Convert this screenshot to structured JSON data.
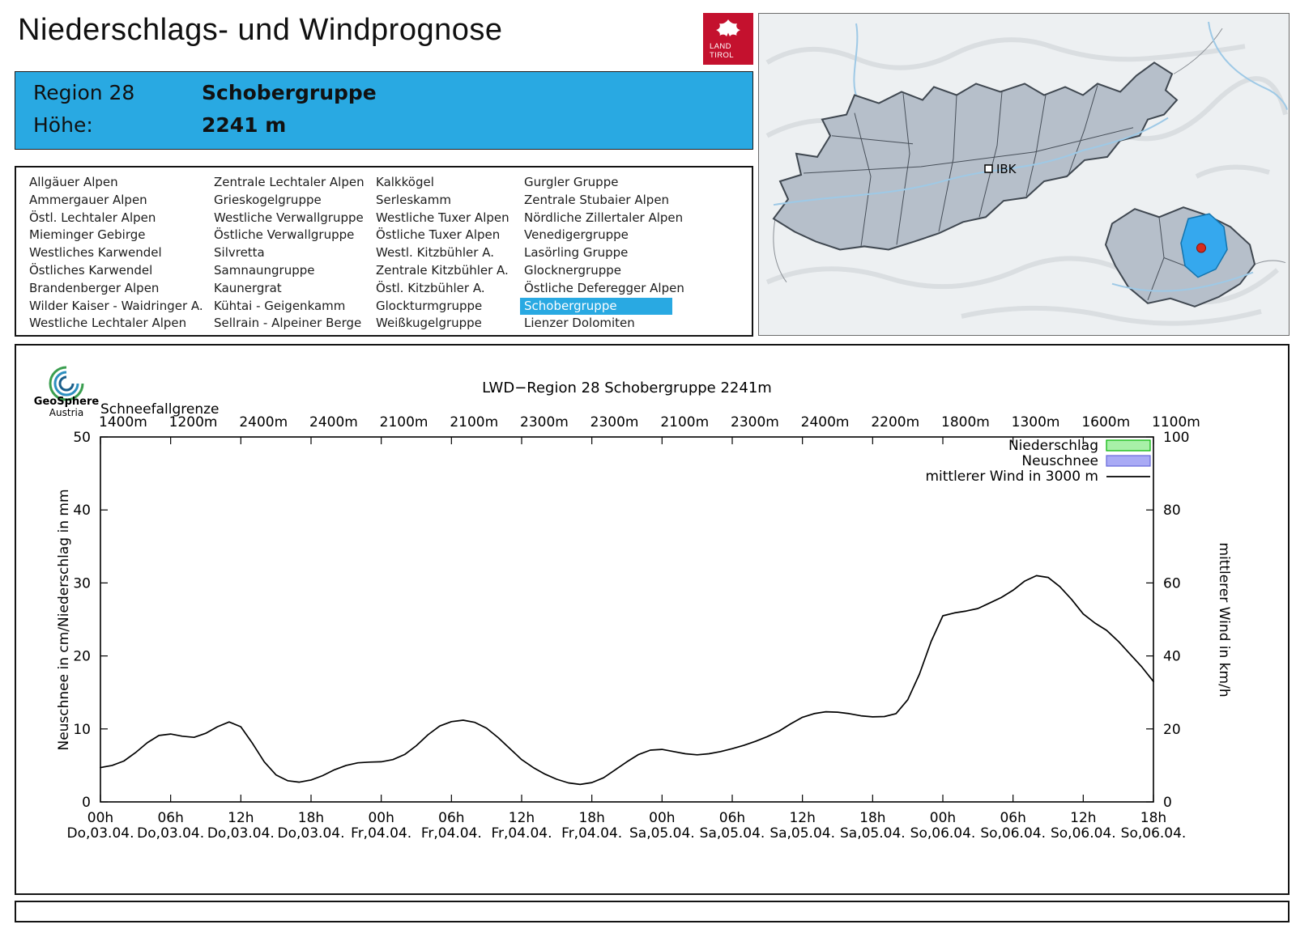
{
  "header": {
    "title": "Niederschlags- und Windprognose",
    "logo": {
      "line1": "LAND",
      "line2": "TIROL"
    }
  },
  "region_info": {
    "region_label": "Region 28",
    "region_name": "Schobergruppe",
    "altitude_label": "Höhe:",
    "altitude_value": "2241 m",
    "accent_color": "#29a9e2"
  },
  "region_list": {
    "selected": "Schobergruppe",
    "columns": [
      [
        "Allgäuer Alpen",
        "Ammergauer Alpen",
        "Östl. Lechtaler Alpen",
        "Mieminger Gebirge",
        "Westliches Karwendel",
        "Östliches Karwendel",
        "Brandenberger Alpen",
        "Wilder Kaiser - Waidringer A.",
        "Westliche Lechtaler Alpen"
      ],
      [
        "Zentrale Lechtaler Alpen",
        "Grieskogelgruppe",
        "Westliche Verwallgruppe",
        "Östliche Verwallgruppe",
        "Silvretta",
        "Samnaungruppe",
        "Kaunergrat",
        "Kühtai - Geigenkamm",
        "Sellrain - Alpeiner Berge"
      ],
      [
        "Kalkkögel",
        "Serleskamm",
        "Westliche Tuxer Alpen",
        "Östliche Tuxer Alpen",
        "Westl. Kitzbühler A.",
        "Zentrale Kitzbühler A.",
        "Östl. Kitzbühler A.",
        "Glockturmgruppe",
        "Weißkugelgruppe"
      ],
      [
        "Gurgler Gruppe",
        "Zentrale Stubaier Alpen",
        "Nördliche Zillertaler Alpen",
        "Venedigergruppe",
        "Lasörling Gruppe",
        "Glocknergruppe",
        "Östliche Deferegger Alpen",
        "Schobergruppe",
        "Lienzer Dolomiten"
      ]
    ]
  },
  "map": {
    "marker_label": "IBK",
    "selected_region_color": "#35a8ee",
    "marker_dot_color": "#d62b1e"
  },
  "chart_logo": {
    "line1": "GeoSphere",
    "line2": "Austria"
  },
  "chart_data": {
    "type": "line",
    "title": "LWD−Region 28 Schobergruppe 2241m",
    "grid": false,
    "legend_position": "top-right",
    "x_axis": {
      "range_hours": [
        0,
        90
      ],
      "tick_every_hours": 6,
      "ticks": [
        {
          "hour": "00h",
          "date": "Do,03.04."
        },
        {
          "hour": "06h",
          "date": "Do,03.04."
        },
        {
          "hour": "12h",
          "date": "Do,03.04."
        },
        {
          "hour": "18h",
          "date": "Do,03.04."
        },
        {
          "hour": "00h",
          "date": "Fr,04.04."
        },
        {
          "hour": "06h",
          "date": "Fr,04.04."
        },
        {
          "hour": "12h",
          "date": "Fr,04.04."
        },
        {
          "hour": "18h",
          "date": "Fr,04.04."
        },
        {
          "hour": "00h",
          "date": "Sa,05.04."
        },
        {
          "hour": "06h",
          "date": "Sa,05.04."
        },
        {
          "hour": "12h",
          "date": "Sa,05.04."
        },
        {
          "hour": "18h",
          "date": "Sa,05.04."
        },
        {
          "hour": "00h",
          "date": "So,06.04."
        },
        {
          "hour": "06h",
          "date": "So,06.04."
        },
        {
          "hour": "12h",
          "date": "So,06.04."
        },
        {
          "hour": "18h",
          "date": "So,06.04."
        }
      ]
    },
    "y_axis_left": {
      "label": "Neuschnee in cm/Niederschlag in mm",
      "lim": [
        0,
        50
      ],
      "ticks": [
        0,
        10,
        20,
        30,
        40,
        50
      ]
    },
    "y_axis_right": {
      "label": "mittlerer Wind in km/h",
      "lim": [
        0,
        100
      ],
      "ticks": [
        0,
        20,
        40,
        60,
        80,
        100
      ]
    },
    "snowline": {
      "label": "Schneefallgrenze",
      "values": [
        "1400m",
        "1200m",
        "2400m",
        "2400m",
        "2100m",
        "2100m",
        "2300m",
        "2300m",
        "2100m",
        "2300m",
        "2400m",
        "2200m",
        "1800m",
        "1300m",
        "1600m",
        "1100m"
      ]
    },
    "series": [
      {
        "name": "Niederschlag",
        "type": "bars",
        "unit": "mm",
        "fill": "#a8f0a8",
        "border": "#00b400",
        "values": []
      },
      {
        "name": "Neuschnee",
        "type": "bars",
        "unit": "cm",
        "fill": "#a9aaf5",
        "border": "#6668d8",
        "values": []
      },
      {
        "name": "mittlerer Wind in 3000 m",
        "type": "line",
        "unit": "km/h",
        "color": "#000000",
        "points": [
          [
            0,
            9.4
          ],
          [
            1,
            10
          ],
          [
            2,
            11.2
          ],
          [
            3,
            13.5
          ],
          [
            4,
            16.2
          ],
          [
            5,
            18.2
          ],
          [
            6,
            18.6
          ],
          [
            7,
            18
          ],
          [
            8,
            17.7
          ],
          [
            9,
            18.8
          ],
          [
            10,
            20.6
          ],
          [
            11,
            21.9
          ],
          [
            12,
            20.6
          ],
          [
            13,
            16
          ],
          [
            14,
            11
          ],
          [
            15,
            7.4
          ],
          [
            16,
            5.8
          ],
          [
            17,
            5.4
          ],
          [
            18,
            6
          ],
          [
            19,
            7.2
          ],
          [
            20,
            8.8
          ],
          [
            21,
            10
          ],
          [
            22,
            10.7
          ],
          [
            23,
            10.9
          ],
          [
            24,
            11
          ],
          [
            25,
            11.6
          ],
          [
            26,
            13
          ],
          [
            27,
            15.4
          ],
          [
            28,
            18.4
          ],
          [
            29,
            20.8
          ],
          [
            30,
            22
          ],
          [
            31,
            22.4
          ],
          [
            32,
            21.8
          ],
          [
            33,
            20.2
          ],
          [
            34,
            17.6
          ],
          [
            35,
            14.6
          ],
          [
            36,
            11.6
          ],
          [
            37,
            9.4
          ],
          [
            38,
            7.6
          ],
          [
            39,
            6.2
          ],
          [
            40,
            5.2
          ],
          [
            41,
            4.8
          ],
          [
            42,
            5.3
          ],
          [
            43,
            6.6
          ],
          [
            44,
            8.8
          ],
          [
            45,
            11
          ],
          [
            46,
            13
          ],
          [
            47,
            14.2
          ],
          [
            48,
            14.4
          ],
          [
            49,
            13.8
          ],
          [
            50,
            13.2
          ],
          [
            51,
            12.9
          ],
          [
            52,
            13.2
          ],
          [
            53,
            13.8
          ],
          [
            54,
            14.6
          ],
          [
            55,
            15.5
          ],
          [
            56,
            16.6
          ],
          [
            57,
            17.9
          ],
          [
            58,
            19.4
          ],
          [
            59,
            21.4
          ],
          [
            60,
            23.2
          ],
          [
            61,
            24.2
          ],
          [
            62,
            24.7
          ],
          [
            63,
            24.6
          ],
          [
            64,
            24.2
          ],
          [
            65,
            23.6
          ],
          [
            66,
            23.3
          ],
          [
            67,
            23.4
          ],
          [
            68,
            24.2
          ],
          [
            69,
            28
          ],
          [
            70,
            35
          ],
          [
            71,
            44
          ],
          [
            72,
            51
          ],
          [
            73,
            51.8
          ],
          [
            74,
            52.3
          ],
          [
            75,
            53
          ],
          [
            76,
            54.5
          ],
          [
            77,
            56
          ],
          [
            78,
            58
          ],
          [
            79,
            60.5
          ],
          [
            80,
            62
          ],
          [
            81,
            61.5
          ],
          [
            82,
            59
          ],
          [
            83,
            55.5
          ],
          [
            84,
            51.5
          ],
          [
            85,
            49
          ],
          [
            86,
            47
          ],
          [
            87,
            44
          ],
          [
            88,
            40.5
          ],
          [
            89,
            37
          ],
          [
            90,
            33
          ]
        ]
      }
    ]
  }
}
